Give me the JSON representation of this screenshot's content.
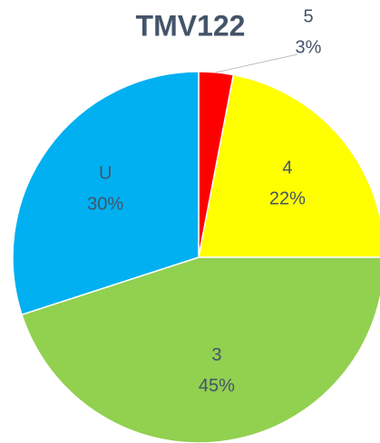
{
  "chart_data": {
    "type": "pie",
    "title": "TMV122",
    "categories": [
      "5",
      "4",
      "3",
      "U"
    ],
    "values": [
      3,
      22,
      45,
      30
    ],
    "value_labels": [
      "3%",
      "22%",
      "45%",
      "30%"
    ],
    "colors": [
      "#ff0000",
      "#ffff00",
      "#92d050",
      "#00b0f0"
    ]
  }
}
